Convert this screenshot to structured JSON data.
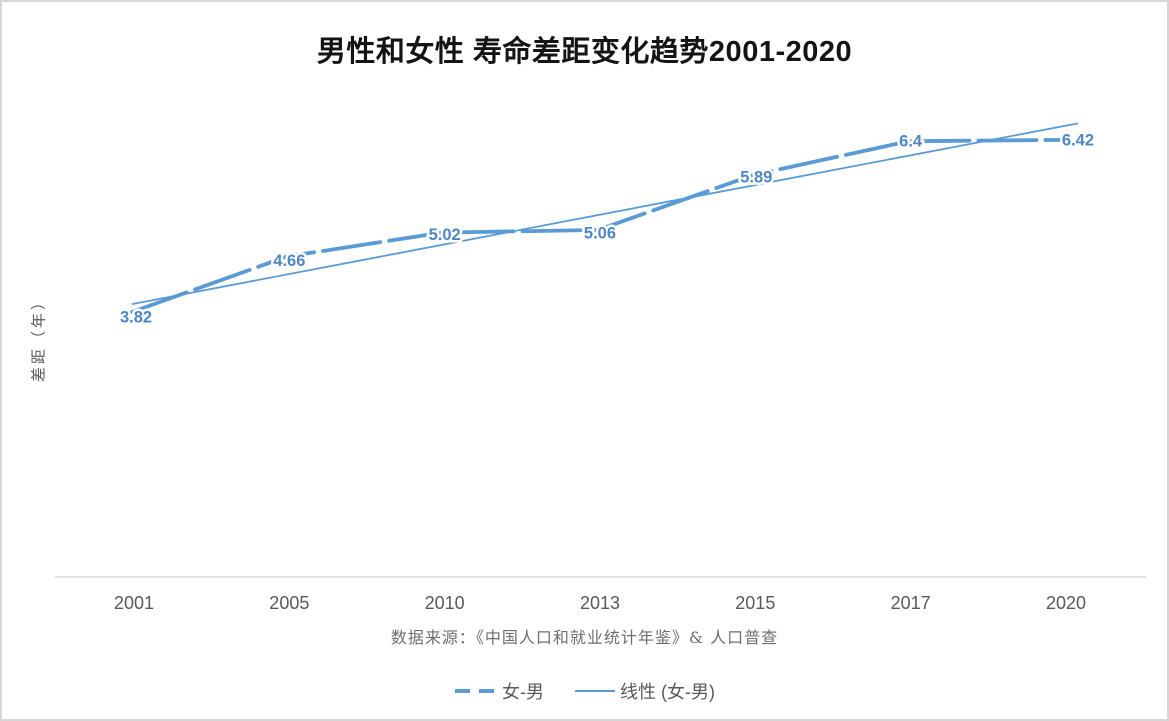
{
  "title": "男性和女性 寿命差距变化趋势2001-2020",
  "y_axis_label": "差距（年）",
  "source_note": "数据来源：《中国人口和就业统计年鉴》& 人口普查",
  "legend": {
    "items": [
      {
        "label": "女-男",
        "style": "dashed"
      },
      {
        "label": "线性 (女-男)",
        "style": "solid"
      }
    ]
  },
  "chart_data": {
    "type": "line",
    "title": "男性和女性 寿命差距变化趋势2001-2020",
    "categories": [
      "2001",
      "2005",
      "2010",
      "2013",
      "2015",
      "2017",
      "2020"
    ],
    "series": [
      {
        "name": "女-男",
        "style": "dashed",
        "values": [
          3.82,
          4.66,
          5.02,
          5.06,
          5.89,
          6.4,
          6.42
        ],
        "data_labels": [
          "3.82",
          "4.66",
          "5.02",
          "5.06",
          "5.89",
          "6.4",
          "6.42"
        ]
      }
    ],
    "trendline": {
      "name": "线性 (女-男)",
      "style": "solid-thin",
      "start_value": 3.94,
      "end_value": 6.67
    },
    "xlabel": "",
    "ylabel": "差距（年）",
    "grid": false,
    "legend_position": "bottom",
    "colors": {
      "series_line": "#5B9BD5",
      "data_label_text": "#4E86C6",
      "axis_line": "#D9D9D9",
      "tick_text": "#595959"
    }
  }
}
